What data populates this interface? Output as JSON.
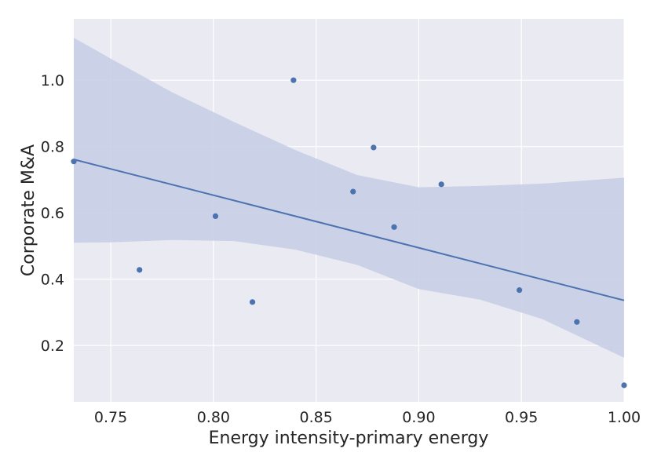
{
  "chart_data": {
    "type": "scatter",
    "title": "",
    "xlabel": "Energy intensity-primary energy",
    "ylabel": "Corporate M&A",
    "xlim": [
      0.732,
      1.0
    ],
    "ylim": [
      0.03,
      1.185
    ],
    "xticks": [
      0.75,
      0.8,
      0.85,
      0.9,
      0.95,
      1.0
    ],
    "xtick_labels": [
      "0.75",
      "0.80",
      "0.85",
      "0.90",
      "0.95",
      "1.00"
    ],
    "yticks": [
      0.2,
      0.4,
      0.6,
      0.8,
      1.0
    ],
    "ytick_labels": [
      "0.2",
      "0.4",
      "0.6",
      "0.8",
      "1.0"
    ],
    "grid": true,
    "points": [
      {
        "x": 0.732,
        "y": 0.755
      },
      {
        "x": 0.764,
        "y": 0.428
      },
      {
        "x": 0.801,
        "y": 0.59
      },
      {
        "x": 0.819,
        "y": 0.331
      },
      {
        "x": 0.839,
        "y": 1.0
      },
      {
        "x": 0.868,
        "y": 0.664
      },
      {
        "x": 0.878,
        "y": 0.797
      },
      {
        "x": 0.888,
        "y": 0.557
      },
      {
        "x": 0.911,
        "y": 0.686
      },
      {
        "x": 0.949,
        "y": 0.367
      },
      {
        "x": 0.977,
        "y": 0.271
      },
      {
        "x": 1.0,
        "y": 0.08
      }
    ],
    "regression_line": {
      "x": [
        0.732,
        1.0
      ],
      "y": [
        0.761,
        0.336
      ]
    },
    "confidence_band": {
      "x": [
        0.732,
        0.75,
        0.78,
        0.81,
        0.84,
        0.87,
        0.9,
        0.93,
        0.96,
        1.0
      ],
      "upper": [
        1.128,
        1.065,
        0.963,
        0.874,
        0.789,
        0.714,
        0.677,
        0.681,
        0.688,
        0.706
      ],
      "lower": [
        0.51,
        0.511,
        0.518,
        0.515,
        0.489,
        0.443,
        0.37,
        0.338,
        0.28,
        0.163
      ]
    },
    "colors": {
      "background": "#eaeaf2",
      "grid": "#ffffff",
      "series": "#4c72b0",
      "band": "#c6cde4"
    }
  }
}
